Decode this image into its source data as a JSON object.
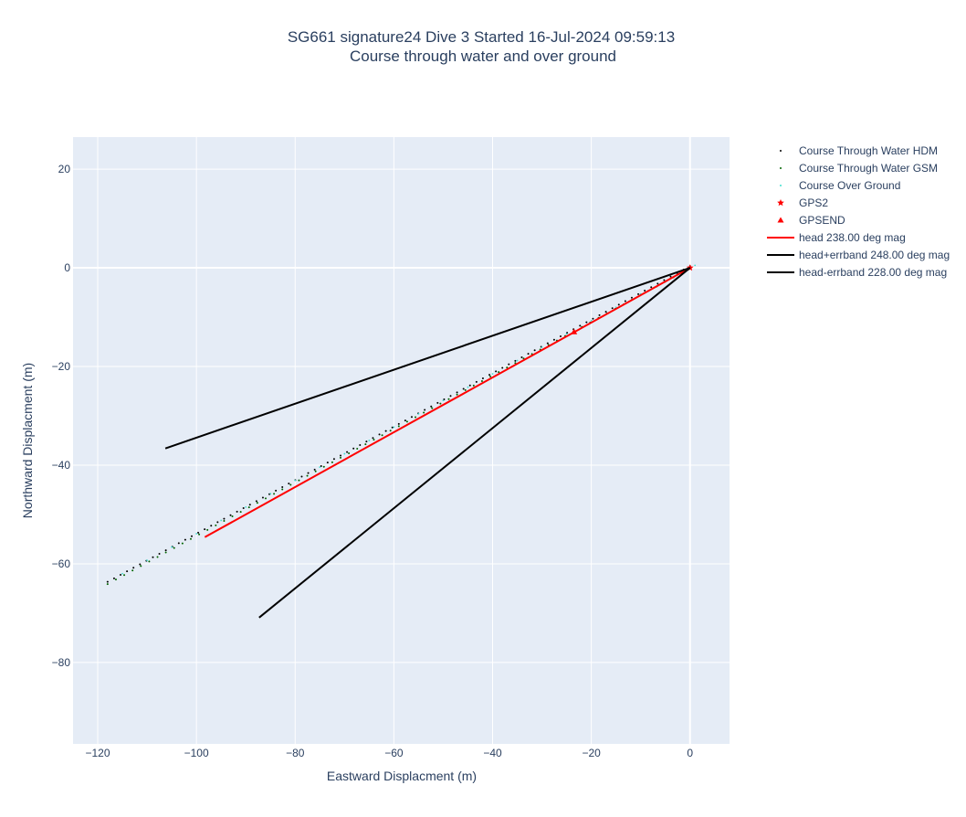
{
  "chart_data": {
    "type": "line",
    "title": "SG661 signature24 Dive 3 Started 16-Jul-2024 09:59:13",
    "subtitle": "Course through water and over ground",
    "xlabel": "Eastward Displacment (m)",
    "ylabel": "Northward Displacment (m)",
    "xlim": [
      -125,
      8
    ],
    "ylim": [
      -96.5,
      26.5
    ],
    "xticks": [
      -120,
      -100,
      -80,
      -60,
      -40,
      -20,
      0
    ],
    "yticks": [
      -80,
      -60,
      -40,
      -20,
      0,
      20
    ],
    "xtick_labels": [
      "−120",
      "−100",
      "−80",
      "−60",
      "−40",
      "−20",
      "0"
    ],
    "ytick_labels": [
      "−80",
      "−60",
      "−40",
      "−20",
      "0",
      "20"
    ],
    "grid": true,
    "legend_position": "right",
    "plot_bg": "#e5ecf6",
    "series": [
      {
        "name": "Course Through Water HDM",
        "kind": "dotted-line",
        "color": "#000000",
        "x": [
          0,
          -118
        ],
        "y": [
          0,
          -64
        ],
        "points": 90
      },
      {
        "name": "Course Through Water GSM",
        "kind": "dotted-line",
        "color": "#006400",
        "x": [
          0,
          -118
        ],
        "y": [
          0,
          -64
        ],
        "points": 70
      },
      {
        "name": "Course Over Ground",
        "kind": "markers",
        "color": "#40e0d0",
        "x": [
          1,
          0,
          -5,
          -10,
          -15,
          -20,
          -25,
          -30,
          -35,
          -40,
          -45,
          -50,
          -55,
          -60,
          -65,
          -70,
          -75,
          -80,
          -85,
          -90,
          -95,
          -100,
          -105,
          -110,
          -115
        ],
        "y": [
          0.5,
          0,
          -2.6,
          -5.3,
          -8,
          -10.7,
          -13.4,
          -16.1,
          -18.8,
          -21.5,
          -24.2,
          -26.9,
          -29.6,
          -32.3,
          -35,
          -37.7,
          -40.4,
          -43.1,
          -45.8,
          -48.5,
          -51.2,
          -53.9,
          -56.6,
          -59.3,
          -62
        ]
      },
      {
        "name": "GPS2",
        "kind": "star",
        "color": "#ff0000",
        "x": [
          0
        ],
        "y": [
          0
        ]
      },
      {
        "name": "GPSEND",
        "kind": "triangle",
        "color": "#ff0000",
        "x": [
          -23.5
        ],
        "y": [
          -13
        ]
      },
      {
        "name": "head 238.00 deg mag",
        "kind": "line",
        "color": "#ff0000",
        "x": [
          0,
          -98.3
        ],
        "y": [
          0,
          -54.6
        ]
      },
      {
        "name": "head+errband 248.00 deg mag",
        "kind": "line",
        "color": "#000000",
        "x": [
          0,
          -106.3
        ],
        "y": [
          0,
          -36.6
        ]
      },
      {
        "name": "head-errband 228.00 deg mag",
        "kind": "line",
        "color": "#000000",
        "x": [
          0,
          -87.3
        ],
        "y": [
          0,
          -70.9
        ]
      }
    ]
  }
}
